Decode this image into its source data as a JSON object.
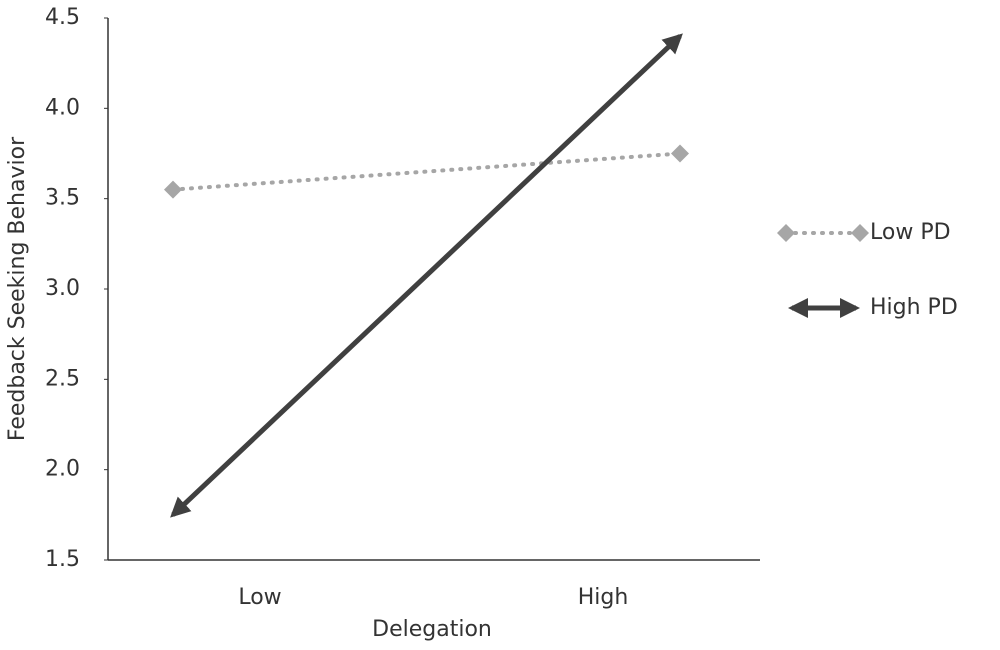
{
  "chart_data": {
    "type": "line",
    "xlabel": "Delegation",
    "ylabel": "Feedback Seeking Behavior",
    "categories": [
      "Low",
      "High"
    ],
    "series": [
      {
        "name": "Low PD",
        "color": "#a6a6a6",
        "style": "dotted",
        "marker": "diamond",
        "values": [
          3.55,
          3.75
        ]
      },
      {
        "name": "High PD",
        "color": "#404040",
        "style": "double-arrow",
        "values": [
          1.75,
          4.4
        ]
      }
    ],
    "ylim": [
      1.5,
      4.5
    ],
    "yticks": [
      1.5,
      {
        "value": 2,
        "label": "2.0"
      },
      2.5,
      {
        "value": 3,
        "label": "3.0"
      },
      3.5,
      {
        "value": 4,
        "label": "4.0"
      },
      4.5
    ],
    "legend": "right"
  }
}
